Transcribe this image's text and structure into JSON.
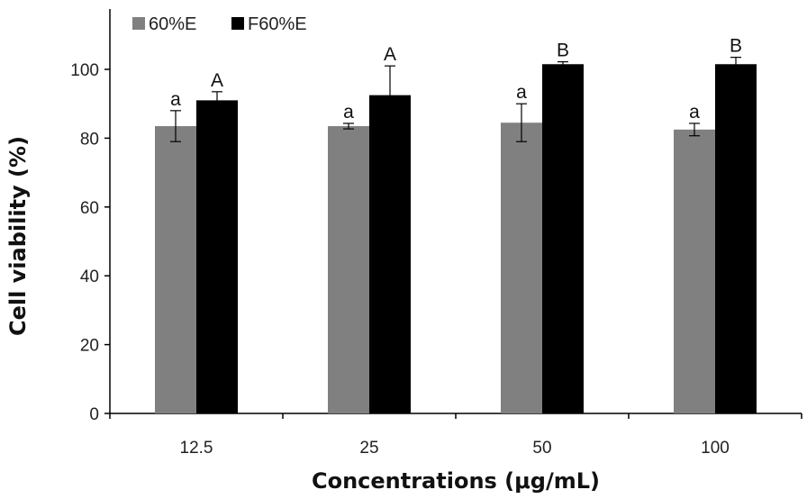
{
  "chart_data": {
    "type": "bar",
    "xlabel": "Concentrations (μg/mL)",
    "ylabel": "Cell viability (%)",
    "ylim": [
      0,
      115
    ],
    "yticks": [
      0,
      20,
      40,
      60,
      80,
      100
    ],
    "grid": false,
    "legend_position": "top-left",
    "categories": [
      "12.5",
      "25",
      "50",
      "100"
    ],
    "series": [
      {
        "name": "60%E",
        "color": "#808080",
        "values": [
          83.5,
          83.5,
          84.5,
          82.5
        ],
        "errors": [
          4.5,
          0.8,
          5.5,
          1.8
        ],
        "labels": [
          "a",
          "a",
          "a",
          "a"
        ]
      },
      {
        "name": "F60%E",
        "color": "#000000",
        "values": [
          91,
          92.5,
          101.5,
          101.5
        ],
        "errors": [
          2.5,
          8.5,
          0.7,
          2.0
        ],
        "labels": [
          "A",
          "A",
          "B",
          "B"
        ]
      }
    ]
  }
}
